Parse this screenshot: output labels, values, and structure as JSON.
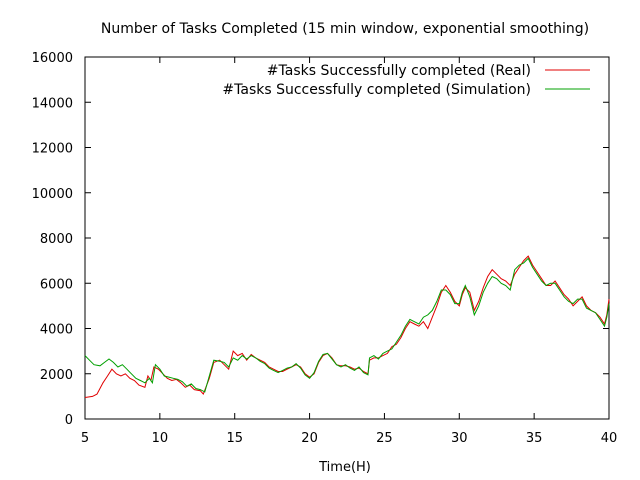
{
  "chart_data": {
    "type": "line",
    "title": "Number of Tasks Completed (15 min window, exponential smoothing)",
    "xlabel": "Time(H)",
    "ylabel": "",
    "xlim": [
      5,
      40
    ],
    "ylim": [
      0,
      16000
    ],
    "xticks": [
      5,
      10,
      15,
      20,
      25,
      30,
      35,
      40
    ],
    "yticks": [
      0,
      2000,
      4000,
      6000,
      8000,
      10000,
      12000,
      14000,
      16000
    ],
    "grid": false,
    "legend_position": "top-right",
    "series": [
      {
        "name": "#Tasks Successfully completed (Real)",
        "color": "#e00000",
        "points": [
          [
            5,
            950
          ],
          [
            5.5,
            1000
          ],
          [
            5.8,
            1100
          ],
          [
            6.2,
            1600
          ],
          [
            6.5,
            1900
          ],
          [
            6.8,
            2200
          ],
          [
            7.1,
            2000
          ],
          [
            7.4,
            1900
          ],
          [
            7.7,
            2000
          ],
          [
            8.0,
            1800
          ],
          [
            8.3,
            1700
          ],
          [
            8.6,
            1500
          ],
          [
            9.0,
            1400
          ],
          [
            9.2,
            1900
          ],
          [
            9.4,
            1700
          ],
          [
            9.6,
            2300
          ],
          [
            9.9,
            2200
          ],
          [
            10.2,
            2000
          ],
          [
            10.5,
            1800
          ],
          [
            10.8,
            1700
          ],
          [
            11.1,
            1750
          ],
          [
            11.4,
            1600
          ],
          [
            11.7,
            1400
          ],
          [
            12.0,
            1500
          ],
          [
            12.3,
            1300
          ],
          [
            12.7,
            1250
          ],
          [
            12.9,
            1100
          ],
          [
            13.3,
            1800
          ],
          [
            13.6,
            2500
          ],
          [
            14.0,
            2600
          ],
          [
            14.3,
            2400
          ],
          [
            14.6,
            2200
          ],
          [
            14.9,
            3000
          ],
          [
            15.2,
            2800
          ],
          [
            15.5,
            2900
          ],
          [
            15.8,
            2600
          ],
          [
            16.1,
            2850
          ],
          [
            16.4,
            2700
          ],
          [
            16.7,
            2600
          ],
          [
            17.0,
            2500
          ],
          [
            17.3,
            2300
          ],
          [
            17.6,
            2200
          ],
          [
            17.9,
            2100
          ],
          [
            18.2,
            2100
          ],
          [
            18.5,
            2200
          ],
          [
            18.8,
            2300
          ],
          [
            19.1,
            2400
          ],
          [
            19.4,
            2300
          ],
          [
            19.7,
            2000
          ],
          [
            20.0,
            1850
          ],
          [
            20.3,
            2000
          ],
          [
            20.6,
            2500
          ],
          [
            20.9,
            2800
          ],
          [
            21.2,
            2900
          ],
          [
            21.5,
            2700
          ],
          [
            21.8,
            2400
          ],
          [
            22.1,
            2350
          ],
          [
            22.4,
            2350
          ],
          [
            22.7,
            2300
          ],
          [
            23.0,
            2200
          ],
          [
            23.3,
            2250
          ],
          [
            23.6,
            2100
          ],
          [
            23.9,
            2000
          ],
          [
            24.0,
            2600
          ],
          [
            24.3,
            2700
          ],
          [
            24.6,
            2700
          ],
          [
            24.9,
            2800
          ],
          [
            25.2,
            2900
          ],
          [
            25.5,
            3200
          ],
          [
            25.8,
            3300
          ],
          [
            26.1,
            3600
          ],
          [
            26.4,
            4000
          ],
          [
            26.7,
            4300
          ],
          [
            27.0,
            4200
          ],
          [
            27.3,
            4100
          ],
          [
            27.6,
            4300
          ],
          [
            27.9,
            4000
          ],
          [
            28.2,
            4500
          ],
          [
            28.5,
            5000
          ],
          [
            28.8,
            5600
          ],
          [
            29.1,
            5900
          ],
          [
            29.4,
            5600
          ],
          [
            29.7,
            5200
          ],
          [
            30.0,
            5000
          ],
          [
            30.2,
            5500
          ],
          [
            30.4,
            5800
          ],
          [
            30.7,
            5600
          ],
          [
            31.0,
            4800
          ],
          [
            31.3,
            5200
          ],
          [
            31.6,
            5800
          ],
          [
            31.9,
            6300
          ],
          [
            32.2,
            6600
          ],
          [
            32.5,
            6400
          ],
          [
            32.8,
            6200
          ],
          [
            33.1,
            6100
          ],
          [
            33.4,
            5900
          ],
          [
            33.7,
            6400
          ],
          [
            34.0,
            6700
          ],
          [
            34.3,
            7000
          ],
          [
            34.6,
            7200
          ],
          [
            34.9,
            6800
          ],
          [
            35.2,
            6500
          ],
          [
            35.5,
            6200
          ],
          [
            35.8,
            5900
          ],
          [
            36.1,
            5900
          ],
          [
            36.4,
            6100
          ],
          [
            36.7,
            5800
          ],
          [
            37.0,
            5500
          ],
          [
            37.3,
            5300
          ],
          [
            37.6,
            5000
          ],
          [
            37.9,
            5200
          ],
          [
            38.2,
            5400
          ],
          [
            38.5,
            5000
          ],
          [
            38.8,
            4800
          ],
          [
            39.1,
            4700
          ],
          [
            39.4,
            4500
          ],
          [
            39.7,
            4200
          ],
          [
            39.85,
            4600
          ],
          [
            40,
            5300
          ]
        ]
      },
      {
        "name": "#Tasks Successfully completed (Simulation)",
        "color": "#00a000",
        "points": [
          [
            5,
            2800
          ],
          [
            5.3,
            2600
          ],
          [
            5.6,
            2400
          ],
          [
            6.0,
            2350
          ],
          [
            6.3,
            2500
          ],
          [
            6.6,
            2650
          ],
          [
            6.9,
            2500
          ],
          [
            7.2,
            2300
          ],
          [
            7.5,
            2400
          ],
          [
            7.8,
            2200
          ],
          [
            8.1,
            2000
          ],
          [
            8.4,
            1800
          ],
          [
            8.7,
            1700
          ],
          [
            9.0,
            1600
          ],
          [
            9.3,
            1800
          ],
          [
            9.5,
            1600
          ],
          [
            9.7,
            2400
          ],
          [
            10.0,
            2200
          ],
          [
            10.3,
            1900
          ],
          [
            10.6,
            1850
          ],
          [
            10.9,
            1800
          ],
          [
            11.2,
            1750
          ],
          [
            11.5,
            1650
          ],
          [
            11.8,
            1450
          ],
          [
            12.1,
            1550
          ],
          [
            12.4,
            1350
          ],
          [
            12.7,
            1300
          ],
          [
            13.0,
            1200
          ],
          [
            13.3,
            1900
          ],
          [
            13.6,
            2600
          ],
          [
            14.0,
            2550
          ],
          [
            14.3,
            2500
          ],
          [
            14.6,
            2300
          ],
          [
            14.9,
            2700
          ],
          [
            15.2,
            2600
          ],
          [
            15.5,
            2800
          ],
          [
            15.8,
            2650
          ],
          [
            16.1,
            2800
          ],
          [
            16.4,
            2700
          ],
          [
            16.7,
            2550
          ],
          [
            17.0,
            2450
          ],
          [
            17.3,
            2250
          ],
          [
            17.6,
            2150
          ],
          [
            17.9,
            2050
          ],
          [
            18.2,
            2150
          ],
          [
            18.5,
            2250
          ],
          [
            18.8,
            2300
          ],
          [
            19.1,
            2450
          ],
          [
            19.4,
            2250
          ],
          [
            19.7,
            1950
          ],
          [
            20.0,
            1800
          ],
          [
            20.3,
            2050
          ],
          [
            20.6,
            2550
          ],
          [
            20.9,
            2850
          ],
          [
            21.2,
            2900
          ],
          [
            21.5,
            2650
          ],
          [
            21.8,
            2400
          ],
          [
            22.1,
            2300
          ],
          [
            22.4,
            2400
          ],
          [
            22.7,
            2250
          ],
          [
            23.0,
            2150
          ],
          [
            23.3,
            2300
          ],
          [
            23.6,
            2050
          ],
          [
            23.9,
            1950
          ],
          [
            24.0,
            2700
          ],
          [
            24.3,
            2800
          ],
          [
            24.6,
            2650
          ],
          [
            24.9,
            2900
          ],
          [
            25.2,
            3000
          ],
          [
            25.5,
            3100
          ],
          [
            25.8,
            3400
          ],
          [
            26.1,
            3700
          ],
          [
            26.4,
            4100
          ],
          [
            26.7,
            4400
          ],
          [
            27.0,
            4300
          ],
          [
            27.3,
            4200
          ],
          [
            27.6,
            4500
          ],
          [
            27.9,
            4600
          ],
          [
            28.2,
            4800
          ],
          [
            28.5,
            5200
          ],
          [
            28.8,
            5700
          ],
          [
            29.1,
            5700
          ],
          [
            29.4,
            5500
          ],
          [
            29.7,
            5100
          ],
          [
            30.0,
            5100
          ],
          [
            30.2,
            5600
          ],
          [
            30.4,
            5900
          ],
          [
            30.7,
            5400
          ],
          [
            31.0,
            4600
          ],
          [
            31.3,
            5000
          ],
          [
            31.6,
            5600
          ],
          [
            31.9,
            6000
          ],
          [
            32.2,
            6300
          ],
          [
            32.5,
            6200
          ],
          [
            32.8,
            6000
          ],
          [
            33.1,
            5900
          ],
          [
            33.4,
            5700
          ],
          [
            33.7,
            6600
          ],
          [
            34.0,
            6800
          ],
          [
            34.3,
            6900
          ],
          [
            34.6,
            7100
          ],
          [
            34.9,
            6700
          ],
          [
            35.2,
            6400
          ],
          [
            35.5,
            6100
          ],
          [
            35.8,
            5900
          ],
          [
            36.1,
            6000
          ],
          [
            36.4,
            6000
          ],
          [
            36.7,
            5700
          ],
          [
            37.0,
            5400
          ],
          [
            37.3,
            5200
          ],
          [
            37.6,
            5100
          ],
          [
            37.9,
            5300
          ],
          [
            38.2,
            5300
          ],
          [
            38.5,
            4900
          ],
          [
            38.8,
            4800
          ],
          [
            39.1,
            4700
          ],
          [
            39.4,
            4400
          ],
          [
            39.7,
            4100
          ],
          [
            39.85,
            4500
          ],
          [
            40,
            5100
          ]
        ]
      }
    ]
  }
}
